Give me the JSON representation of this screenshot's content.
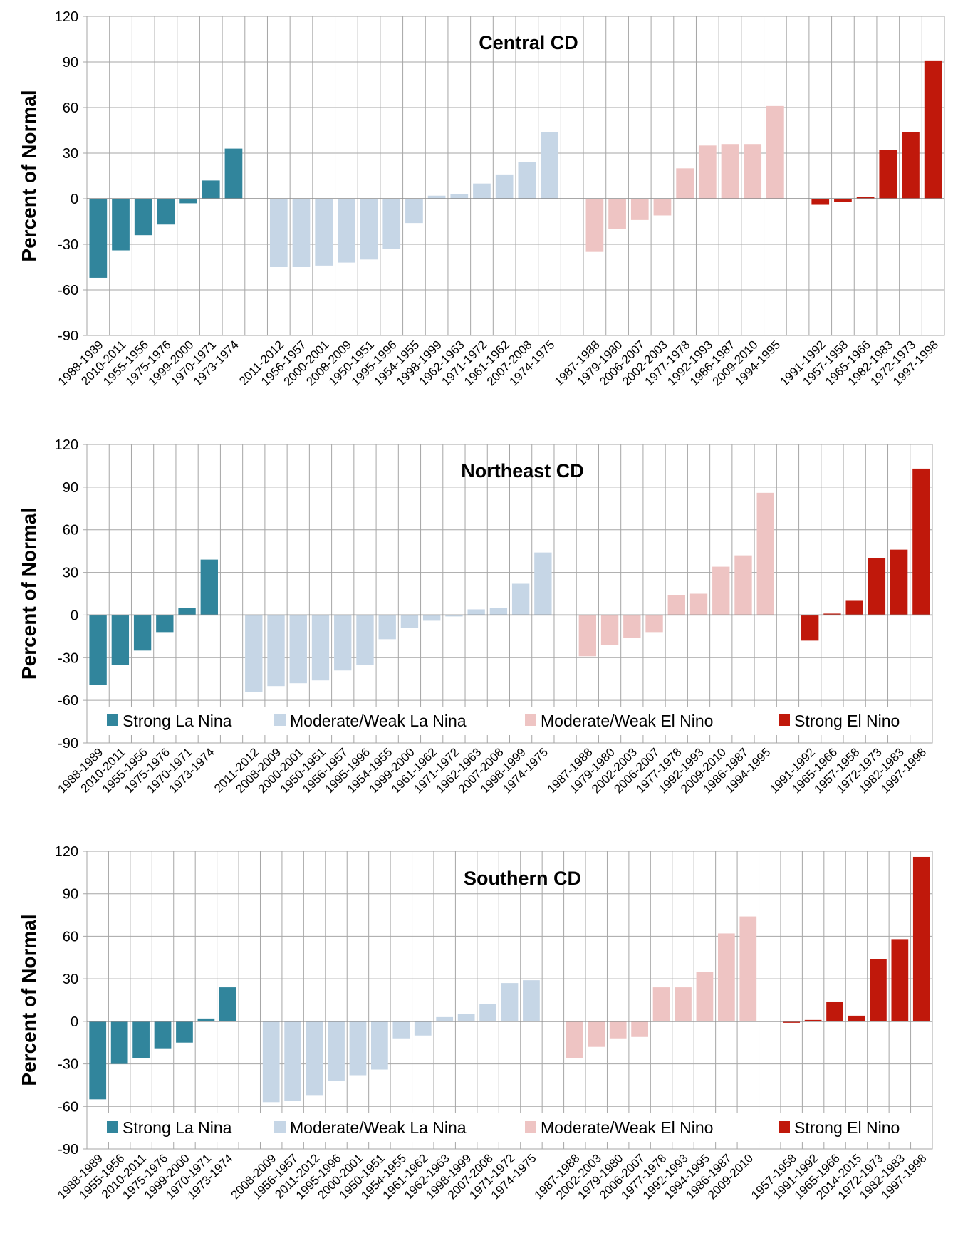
{
  "colors": {
    "strong_la_nina": "#31859c",
    "moderate_weak_la_nina": "#c6d6e6",
    "moderate_weak_el_nino": "#eec4c3",
    "strong_el_nino": "#c0180b",
    "grid": "#a6a6a6"
  },
  "legend": {
    "strong_la_nina": "Strong La Nina",
    "moderate_weak_la_nina": "Moderate/Weak La Nina",
    "moderate_weak_el_nino": "Moderate/Weak El Nino",
    "strong_el_nino": "Strong El Nino"
  },
  "chart_data": [
    {
      "type": "bar",
      "title": "Central CD",
      "ylabel": "Percent of Normal",
      "ylim": [
        -90,
        120
      ],
      "yticks": [
        -90,
        -60,
        -30,
        0,
        30,
        60,
        90,
        120
      ],
      "grid": true,
      "legend": false,
      "groups": [
        {
          "series": "Strong La Nina",
          "color_key": "strong_la_nina",
          "categories": [
            "1988-1989",
            "2010-2011",
            "1955-1956",
            "1975-1976",
            "1999-2000",
            "1970-1971",
            "1973-1974"
          ],
          "values": [
            -52,
            -34,
            -24,
            -17,
            -3,
            12,
            33
          ]
        },
        {
          "series": "Moderate/Weak La Nina",
          "color_key": "moderate_weak_la_nina",
          "categories": [
            "2011-2012",
            "1956-1957",
            "2000-2001",
            "2008-2009",
            "1950-1951",
            "1995-1996",
            "1954-1955",
            "1998-1999",
            "1962-1963",
            "1971-1972",
            "1961-1962",
            "2007-2008",
            "1974-1975"
          ],
          "values": [
            -45,
            -45,
            -44,
            -42,
            -40,
            -33,
            -16,
            2,
            3,
            10,
            16,
            24,
            44
          ]
        },
        {
          "series": "Moderate/Weak El Nino",
          "color_key": "moderate_weak_el_nino",
          "categories": [
            "1987-1988",
            "1979-1980",
            "2006-2007",
            "2002-2003",
            "1977-1978",
            "1992-1993",
            "1986-1987",
            "2009-2010",
            "1994-1995"
          ],
          "values": [
            -35,
            -20,
            -14,
            -11,
            20,
            35,
            36,
            36,
            61
          ]
        },
        {
          "series": "Strong El Nino",
          "color_key": "strong_el_nino",
          "categories": [
            "1991-1992",
            "1957-1958",
            "1965-1966",
            "1982-1983",
            "1972-1973",
            "1997-1998"
          ],
          "values": [
            -4,
            -2,
            1,
            32,
            44,
            91
          ]
        }
      ]
    },
    {
      "type": "bar",
      "title": "Northeast CD",
      "ylabel": "Percent of Normal",
      "ylim": [
        -90,
        120
      ],
      "yticks": [
        -90,
        -60,
        -30,
        0,
        30,
        60,
        90,
        120
      ],
      "grid": true,
      "legend": true,
      "groups": [
        {
          "series": "Strong La Nina",
          "color_key": "strong_la_nina",
          "categories": [
            "1988-1989",
            "2010-2011",
            "1955-1956",
            "1975-1976",
            "1970-1971",
            "1973-1974"
          ],
          "values": [
            -49,
            -35,
            -25,
            -12,
            5,
            39
          ]
        },
        {
          "series": "Moderate/Weak La Nina",
          "color_key": "moderate_weak_la_nina",
          "categories": [
            "2011-2012",
            "2008-2009",
            "2000-2001",
            "1950-1951",
            "1956-1957",
            "1995-1996",
            "1954-1955",
            "1999-2000",
            "1961-1962",
            "1971-1972",
            "1962-1963",
            "2007-2008",
            "1998-1999",
            "1974-1975"
          ],
          "values": [
            -54,
            -50,
            -48,
            -46,
            -39,
            -35,
            -17,
            -9,
            -4,
            -1,
            4,
            5,
            22,
            44
          ]
        },
        {
          "series": "Moderate/Weak El Nino",
          "color_key": "moderate_weak_el_nino",
          "categories": [
            "1987-1988",
            "1979-1980",
            "2002-2003",
            "2006-2007",
            "1977-1978",
            "1992-1993",
            "2009-2010",
            "1986-1987",
            "1994-1995"
          ],
          "values": [
            -29,
            -21,
            -16,
            -12,
            14,
            15,
            34,
            42,
            86
          ]
        },
        {
          "series": "Strong El Nino",
          "color_key": "strong_el_nino",
          "categories": [
            "1991-1992",
            "1965-1966",
            "1957-1958",
            "1972-1973",
            "1982-1983",
            "1997-1998"
          ],
          "values": [
            -18,
            1,
            10,
            40,
            46,
            103
          ]
        }
      ]
    },
    {
      "type": "bar",
      "title": "Southern CD",
      "ylabel": "Percent of Normal",
      "ylim": [
        -90,
        120
      ],
      "yticks": [
        -90,
        -60,
        -30,
        0,
        30,
        60,
        90,
        120
      ],
      "grid": true,
      "legend": true,
      "groups": [
        {
          "series": "Strong La Nina",
          "color_key": "strong_la_nina",
          "categories": [
            "1988-1989",
            "1955-1956",
            "2010-2011",
            "1975-1976",
            "1999-2000",
            "1970-1971",
            "1973-1974"
          ],
          "values": [
            -55,
            -30,
            -26,
            -19,
            -15,
            2,
            24
          ]
        },
        {
          "series": "Moderate/Weak La Nina",
          "color_key": "moderate_weak_la_nina",
          "categories": [
            "2008-2009",
            "1956-1957",
            "2011-2012",
            "1995-1996",
            "2000-2001",
            "1950-1951",
            "1954-1955",
            "1961-1962",
            "1962-1963",
            "1998-1999",
            "2007-2008",
            "1971-1972",
            "1974-1975"
          ],
          "values": [
            -57,
            -56,
            -52,
            -42,
            -38,
            -34,
            -12,
            -10,
            3,
            5,
            12,
            27,
            29
          ]
        },
        {
          "series": "Moderate/Weak El Nino",
          "color_key": "moderate_weak_el_nino",
          "categories": [
            "1987-1988",
            "2002-2003",
            "1979-1980",
            "2006-2007",
            "1977-1978",
            "1992-1993",
            "1994-1995",
            "1986-1987",
            "2009-2010"
          ],
          "values": [
            -26,
            -18,
            -12,
            -11,
            24,
            24,
            35,
            62,
            74
          ]
        },
        {
          "series": "Strong El Nino",
          "color_key": "strong_el_nino",
          "categories": [
            "1957-1958",
            "1991-1992",
            "1965-1966",
            "2014-2015",
            "1972-1973",
            "1982-1983",
            "1997-1998"
          ],
          "values": [
            -1,
            1,
            14,
            4,
            44,
            58,
            116
          ]
        }
      ]
    }
  ]
}
